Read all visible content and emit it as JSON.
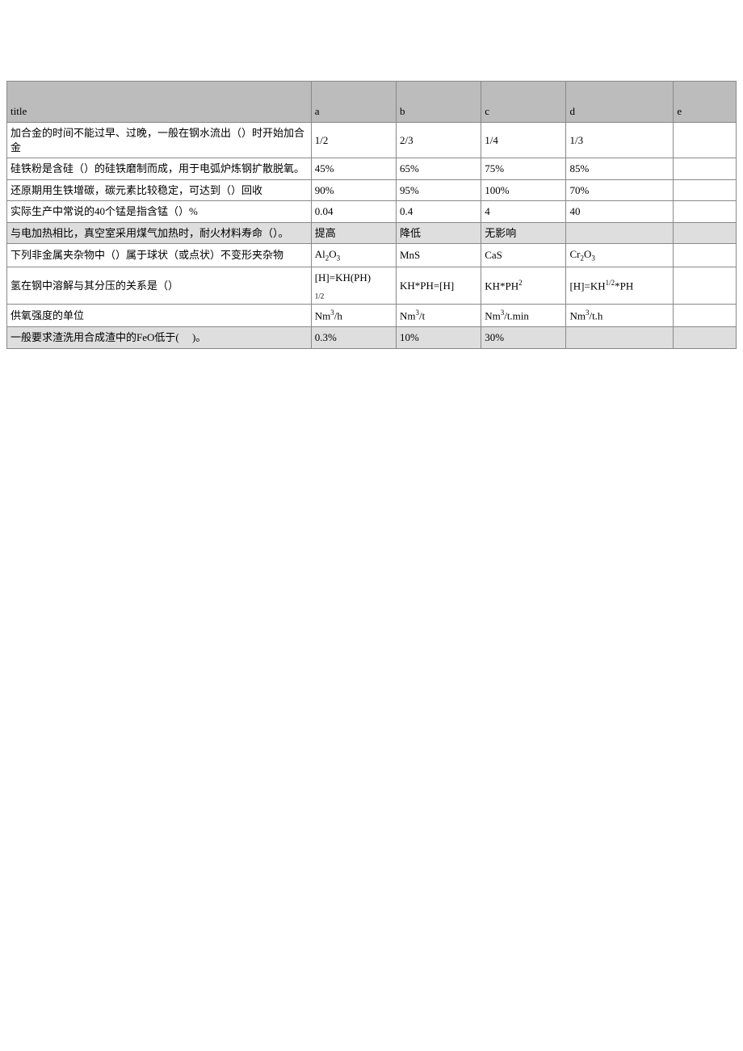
{
  "table": {
    "header": {
      "title": "title",
      "a": "a",
      "b": "b",
      "c": "c",
      "d": "d",
      "e": "e"
    },
    "rows": [
      {
        "gray": false,
        "title_html": "加合金的时间不能过早、过晚，一般在钢水流出（）时开始加合金",
        "a_html": "1/2",
        "b_html": "2/3",
        "c_html": "1/4",
        "d_html": "1/3",
        "e_html": ""
      },
      {
        "gray": false,
        "title_html": "硅铁粉是含硅（）的硅铁磨制而成，用于电弧炉炼钢扩散脱氧。",
        "a_html": "45%",
        "b_html": "65%",
        "c_html": "75%",
        "d_html": "85%",
        "e_html": ""
      },
      {
        "gray": false,
        "title_html": "还原期用生铁增碳，碳元素比较稳定，可达到（）回收",
        "a_html": "90%",
        "b_html": "95%",
        "c_html": "100%",
        "d_html": "70%",
        "e_html": ""
      },
      {
        "gray": false,
        "title_html": "实际生产中常说的40个锰是指含锰（）%",
        "a_html": "0.04",
        "b_html": "0.4",
        "c_html": "4",
        "d_html": "40",
        "e_html": ""
      },
      {
        "gray": true,
        "title_html": "与电加热相比，真空室采用煤气加热时，耐火材料寿命（）。",
        "a_html": "提高",
        "b_html": "降低",
        "c_html": "无影响",
        "d_html": "",
        "e_html": ""
      },
      {
        "gray": false,
        "title_html": "下列非金属夹杂物中（）属于球状（或点状）不变形夹杂物",
        "a_html": "Al<span class=\"sub\">2</span>O<span class=\"sub\">3</span>",
        "b_html": "MnS",
        "c_html": "CaS",
        "d_html": "Cr<span class=\"sub\">2</span>O<span class=\"sub\">3</span>",
        "e_html": ""
      },
      {
        "gray": false,
        "title_html": "氢在钢中溶解与其分压的关系是（）",
        "a_html": "[H]=KH(PH)<br><span class=\"sub\">1/2</span>",
        "b_html": "KH*PH=[H]",
        "c_html": "KH*PH<span class=\"sup\">2</span>",
        "d_html": "[H]=KH<span class=\"sup\">1/2</span>*PH",
        "e_html": ""
      },
      {
        "gray": false,
        "title_html": "供氧强度的单位",
        "a_html": "Nm<span class=\"sup\">3</span>/h",
        "b_html": "Nm<span class=\"sup\">3</span>/t",
        "c_html": "Nm<span class=\"sup\">3</span>/t.min",
        "d_html": "Nm<span class=\"sup\">3</span>/t.h",
        "e_html": ""
      },
      {
        "gray": true,
        "title_html": "一般要求渣洗用合成渣中的FeO低于(&nbsp;&nbsp;&nbsp;&nbsp;&nbsp;)。",
        "a_html": "0.3%",
        "b_html": "10%",
        "c_html": "30%",
        "d_html": "",
        "e_html": ""
      }
    ]
  },
  "colors": {
    "border": "#888888",
    "header_bg": "#bcbcbc",
    "row_gray_bg": "#dedede",
    "bg": "#ffffff",
    "text": "#000000"
  },
  "font": {
    "family": "SimSun",
    "size_pt": 10
  }
}
